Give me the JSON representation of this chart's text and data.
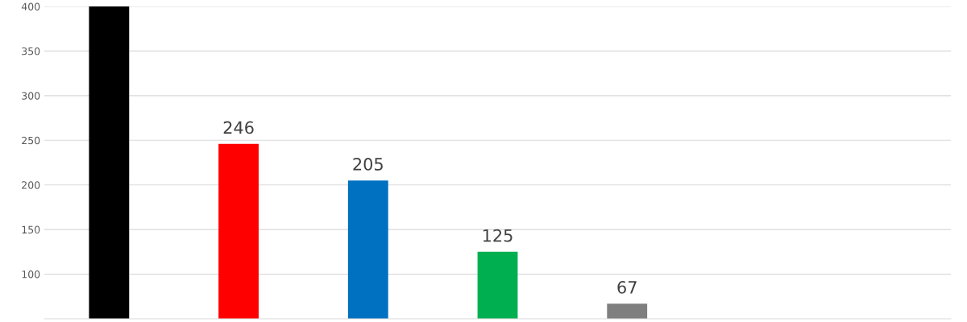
{
  "chart_data": {
    "type": "bar",
    "categories": [
      null,
      null,
      null,
      null,
      null,
      null,
      null
    ],
    "values": [
      400,
      246,
      205,
      125,
      67,
      null,
      null
    ],
    "colors": [
      "#000000",
      "#ff0000",
      "#0070c0",
      "#00b050",
      "#7f7f7f",
      "#7f7f7f",
      "#7f7f7f"
    ],
    "value_labels": [
      null,
      "246",
      "205",
      "125",
      "67",
      null,
      null
    ],
    "ylim": [
      50,
      400
    ],
    "yticks": [
      100,
      150,
      200,
      250,
      300,
      350,
      400
    ],
    "grid": "y",
    "tick_labels": "y"
  }
}
